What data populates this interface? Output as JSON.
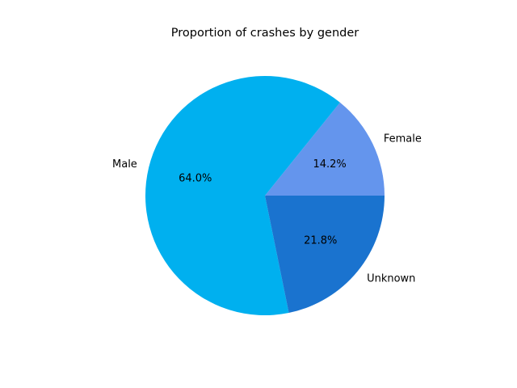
{
  "chart_data": {
    "type": "pie",
    "title": "Proportion of crashes by gender",
    "slices": [
      {
        "label": "Female",
        "value": 14.2,
        "pct_label": "14.2%",
        "color": "#6495ED"
      },
      {
        "label": "Male",
        "value": 64.0,
        "pct_label": "64.0%",
        "color": "#00B0EF"
      },
      {
        "label": "Unknown",
        "value": 21.8,
        "pct_label": "21.8%",
        "color": "#1A73CF"
      }
    ],
    "start_angle_deg": 0,
    "direction": "counterclockwise"
  }
}
